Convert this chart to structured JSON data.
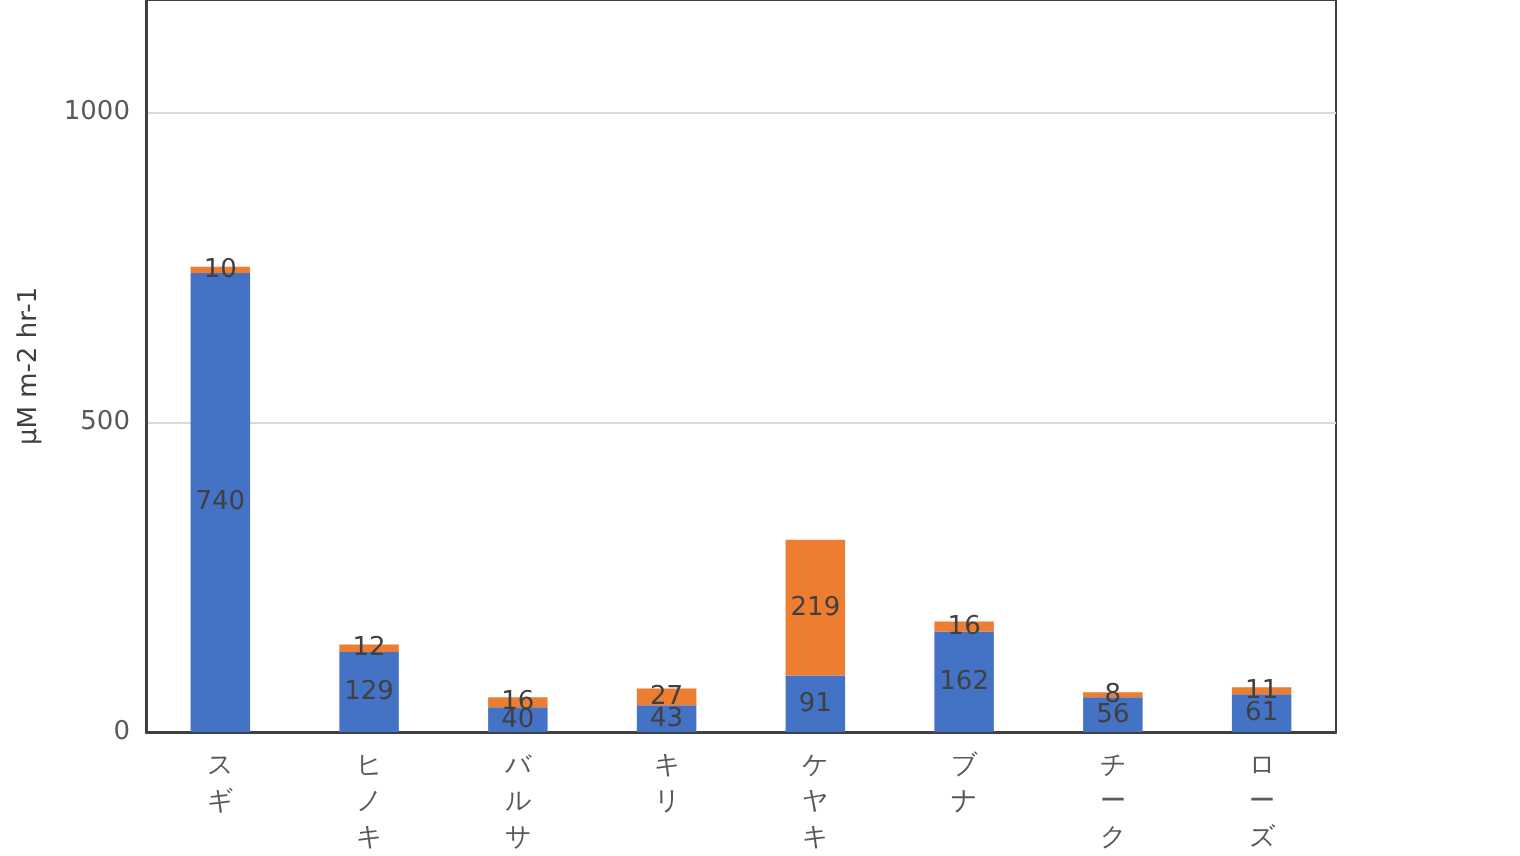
{
  "chart_data": {
    "type": "bar",
    "ylabel": "μM m-2 hr-1",
    "categories": [
      "スギ",
      "ヒノキ",
      "バルサ",
      "キリ",
      "ケヤキ",
      "ブナ",
      "チーク",
      "ローズ"
    ],
    "series": [
      {
        "color": "#4472c4",
        "values": [
          740,
          129,
          40,
          43,
          91,
          162,
          56,
          61
        ]
      },
      {
        "color": "#ed7d31",
        "values": [
          10,
          12,
          16,
          27,
          219,
          16,
          8,
          11
        ]
      }
    ],
    "stacked": true,
    "data_labels": true,
    "ylim": [
      0,
      1180
    ],
    "yticks": [
      0,
      500,
      1000
    ],
    "grid": "y"
  }
}
